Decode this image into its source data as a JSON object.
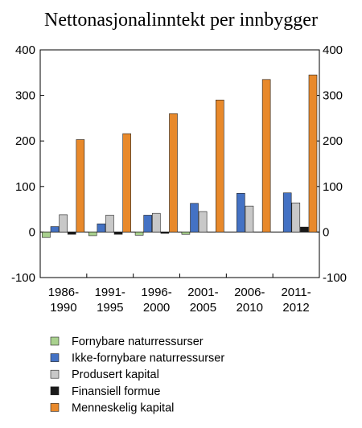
{
  "chart_data": {
    "type": "bar",
    "title": "Nettonasjonalinntekt per innbygger",
    "categories": [
      [
        "1986-",
        "1990"
      ],
      [
        "1991-",
        "1995"
      ],
      [
        "1996-",
        "2000"
      ],
      [
        "2001-",
        "2005"
      ],
      [
        "2006-",
        "2010"
      ],
      [
        "2011-",
        "2012"
      ]
    ],
    "ylim": [
      -100,
      400
    ],
    "yticks": [
      -100,
      0,
      100,
      200,
      300,
      400
    ],
    "grid": false,
    "legend_position": "bottom",
    "series": [
      {
        "name": "Fornybare naturressurser",
        "color": "#a9d18e",
        "values": [
          -12,
          -8,
          -7,
          -5,
          0,
          0
        ]
      },
      {
        "name": "Ikke-fornybare naturressurser",
        "color": "#4472c4",
        "values": [
          12,
          18,
          37,
          63,
          85,
          86
        ]
      },
      {
        "name": "Produsert kapital",
        "color": "#c8c8c8",
        "values": [
          38,
          37,
          41,
          45,
          57,
          64
        ]
      },
      {
        "name": "Finansiell formue",
        "color": "#1a1a1a",
        "values": [
          -5,
          -5,
          -3,
          0,
          0,
          11
        ]
      },
      {
        "name": "Menneskelig kapital",
        "color": "#e8892b",
        "values": [
          203,
          216,
          260,
          290,
          335,
          345
        ]
      }
    ]
  }
}
